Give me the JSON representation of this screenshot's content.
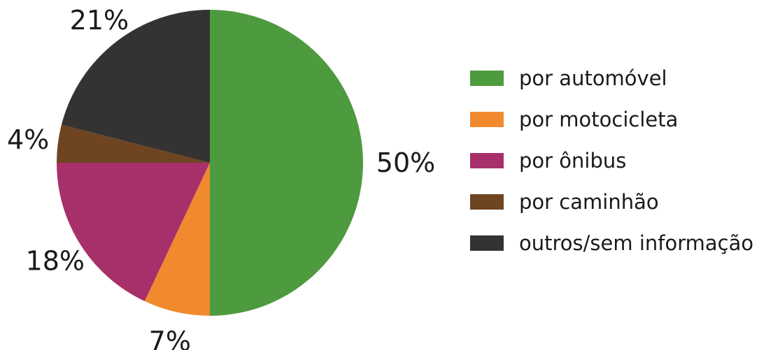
{
  "chart_data": {
    "type": "pie",
    "slices": [
      {
        "label": "por automóvel",
        "value": 50,
        "display": "50%",
        "color": "#4e9a3f"
      },
      {
        "label": "por motocicleta",
        "value": 7,
        "display": "7%",
        "color": "#f18a2f"
      },
      {
        "label": "por ônibus",
        "value": 18,
        "display": "18%",
        "color": "#a8306a"
      },
      {
        "label": "por caminhão",
        "value": 4,
        "display": "4%",
        "color": "#6e4421"
      },
      {
        "label": "outros/sem informação",
        "value": 21,
        "display": "21%",
        "color": "#353331"
      }
    ],
    "start": "12 o'clock",
    "direction": "clockwise",
    "legend_position": "right"
  },
  "legend": {
    "items": [
      {
        "label": "por automóvel",
        "color": "#4e9a3f",
        "icon": "square-swatch"
      },
      {
        "label": "por motocicleta",
        "color": "#f18a2f",
        "icon": "square-swatch"
      },
      {
        "label": "por ônibus",
        "color": "#a8306a",
        "icon": "square-swatch"
      },
      {
        "label": "por caminhão",
        "color": "#6e4421",
        "icon": "square-swatch"
      },
      {
        "label": "outros/sem informação",
        "color": "#353331",
        "icon": "square-swatch"
      }
    ]
  }
}
